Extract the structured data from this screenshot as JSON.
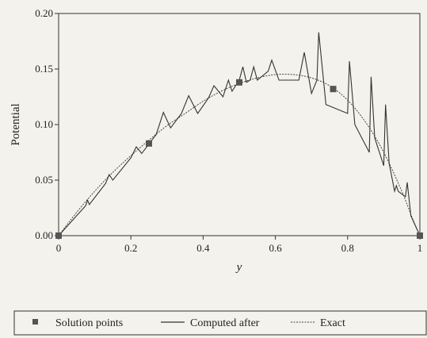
{
  "chart_data": {
    "type": "line",
    "title": "",
    "xlabel": "y",
    "ylabel": "Potential",
    "xlim": [
      0,
      1
    ],
    "ylim": [
      0,
      0.2
    ],
    "x_ticks": [
      "0",
      "0.2",
      "0.4",
      "0.6",
      "0.8",
      "1"
    ],
    "y_ticks": [
      "0.00",
      "0.05",
      "0.10",
      "0.15",
      "0.20"
    ],
    "grid": false,
    "legend_position": "bottom",
    "legend": {
      "solution_points": "Solution points",
      "computed": "Computed after",
      "exact": "Exact"
    },
    "solution_points": [
      {
        "x": 0.0,
        "y": 0.0
      },
      {
        "x": 0.25,
        "y": 0.083
      },
      {
        "x": 0.5,
        "y": 0.138
      },
      {
        "x": 0.76,
        "y": 0.132
      },
      {
        "x": 1.0,
        "y": 0.0
      }
    ],
    "exact_curve": {
      "x": [
        0,
        0.05,
        0.1,
        0.15,
        0.2,
        0.25,
        0.3,
        0.35,
        0.4,
        0.45,
        0.5,
        0.55,
        0.6,
        0.65,
        0.7,
        0.75,
        0.8,
        0.85,
        0.9,
        0.95,
        0.98,
        1.0
      ],
      "y": [
        0,
        0.021,
        0.04,
        0.057,
        0.072,
        0.086,
        0.099,
        0.11,
        0.121,
        0.13,
        0.137,
        0.142,
        0.145,
        0.145,
        0.142,
        0.135,
        0.122,
        0.102,
        0.075,
        0.04,
        0.015,
        0
      ]
    },
    "computed_curve": {
      "x": [
        0.0,
        0.075,
        0.08,
        0.085,
        0.13,
        0.14,
        0.15,
        0.2,
        0.215,
        0.23,
        0.27,
        0.29,
        0.31,
        0.34,
        0.36,
        0.385,
        0.415,
        0.43,
        0.455,
        0.47,
        0.48,
        0.5,
        0.51,
        0.52,
        0.53,
        0.54,
        0.55,
        0.58,
        0.59,
        0.61,
        0.665,
        0.68,
        0.7,
        0.715,
        0.72,
        0.74,
        0.8,
        0.805,
        0.82,
        0.86,
        0.865,
        0.875,
        0.9,
        0.905,
        0.915,
        0.93,
        0.935,
        0.94,
        0.96,
        0.965,
        0.975,
        1.0
      ],
      "y": [
        0.0,
        0.027,
        0.032,
        0.028,
        0.047,
        0.055,
        0.05,
        0.07,
        0.08,
        0.074,
        0.091,
        0.111,
        0.097,
        0.11,
        0.126,
        0.11,
        0.124,
        0.135,
        0.125,
        0.14,
        0.13,
        0.14,
        0.152,
        0.138,
        0.14,
        0.152,
        0.14,
        0.148,
        0.158,
        0.14,
        0.14,
        0.165,
        0.128,
        0.14,
        0.183,
        0.118,
        0.11,
        0.157,
        0.1,
        0.075,
        0.143,
        0.088,
        0.063,
        0.118,
        0.065,
        0.04,
        0.045,
        0.04,
        0.035,
        0.048,
        0.018,
        0.0
      ]
    }
  }
}
